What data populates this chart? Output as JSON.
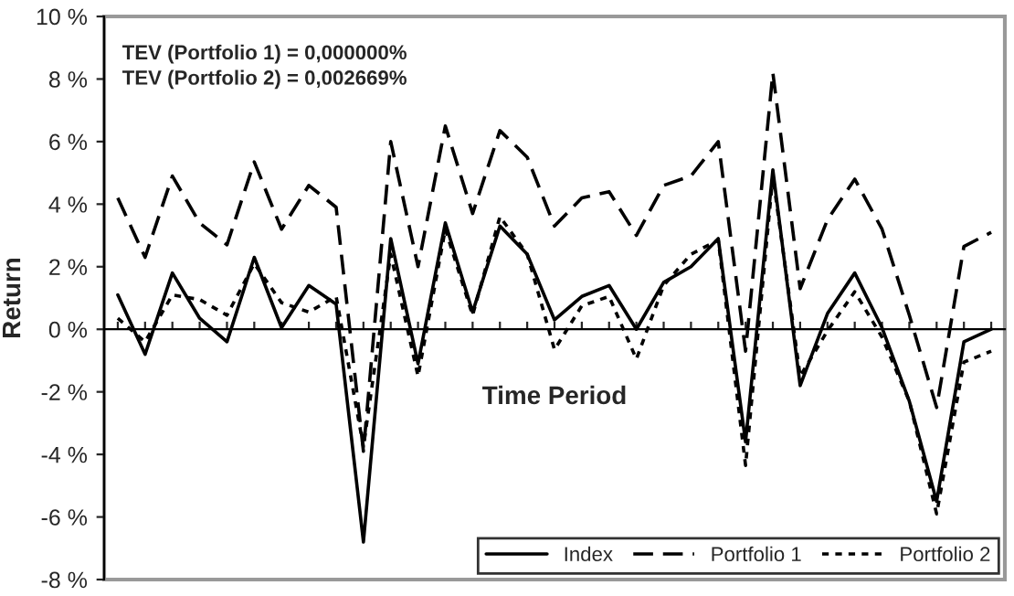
{
  "chart_data": {
    "type": "line",
    "ylabel": "Return",
    "xlabel": "Time Period",
    "annotations": [
      "TEV (Portfolio 1) = 0,000000%",
      "TEV (Portfolio 2) = 0,002669%"
    ],
    "categories": [
      null,
      null,
      null,
      null,
      null,
      null,
      null,
      null,
      null,
      null,
      null,
      null,
      null,
      null,
      null,
      null,
      null,
      null,
      null,
      null,
      null,
      null,
      null,
      null,
      null,
      null,
      null,
      null,
      null,
      null,
      null,
      null,
      null
    ],
    "series": [
      {
        "name": "Index",
        "color": "#000000",
        "line_style": "solid",
        "values": [
          1.1,
          -0.8,
          1.8,
          0.35,
          -0.4,
          2.3,
          0.05,
          1.4,
          0.8,
          -6.8,
          2.9,
          -1.1,
          3.4,
          0.55,
          3.3,
          2.4,
          0.3,
          1.05,
          1.4,
          0.0,
          1.5,
          2.0,
          2.9,
          -3.6,
          5.1,
          -1.8,
          0.5,
          1.8,
          0.05,
          -2.3,
          -5.5,
          -0.4,
          0.0
        ]
      },
      {
        "name": "Portfolio 1",
        "color": "#000000",
        "line_style": "dashed",
        "values": [
          4.2,
          2.3,
          4.9,
          3.4,
          2.7,
          5.35,
          3.2,
          4.6,
          3.9,
          -3.9,
          6.0,
          2.0,
          6.5,
          3.7,
          6.35,
          5.5,
          3.3,
          4.2,
          4.4,
          3.0,
          4.6,
          4.9,
          6.0,
          -0.7,
          8.2,
          1.3,
          3.5,
          4.8,
          3.2,
          0.45,
          -2.5,
          2.65,
          3.1
        ]
      },
      {
        "name": "Portfolio 2",
        "color": "#000000",
        "line_style": "dotted",
        "values": [
          0.35,
          -0.4,
          1.1,
          0.95,
          0.45,
          2.1,
          0.85,
          0.55,
          1.05,
          -3.75,
          2.4,
          -1.5,
          3.2,
          0.45,
          3.6,
          2.4,
          -0.65,
          0.75,
          1.05,
          -0.95,
          1.4,
          2.4,
          2.85,
          -4.35,
          4.9,
          -1.5,
          -0.05,
          1.2,
          -0.25,
          -2.3,
          -5.9,
          -1.05,
          -0.7
        ]
      }
    ],
    "ylim": [
      -8,
      10
    ],
    "yticks": [
      {
        "value": -8,
        "label": "-8 %"
      },
      {
        "value": -6,
        "label": "-6 %"
      },
      {
        "value": -4,
        "label": "-4 %"
      },
      {
        "value": -2,
        "label": "-2 %"
      },
      {
        "value": 0,
        "label": "0 %"
      },
      {
        "value": 2,
        "label": "2 %"
      },
      {
        "value": 4,
        "label": "4 %"
      },
      {
        "value": 6,
        "label": "6 %"
      },
      {
        "value": 8,
        "label": "8 %"
      },
      {
        "value": 10,
        "label": "10 %"
      }
    ],
    "tick_labels": "y",
    "legend": "bottom right",
    "marker": "none"
  }
}
